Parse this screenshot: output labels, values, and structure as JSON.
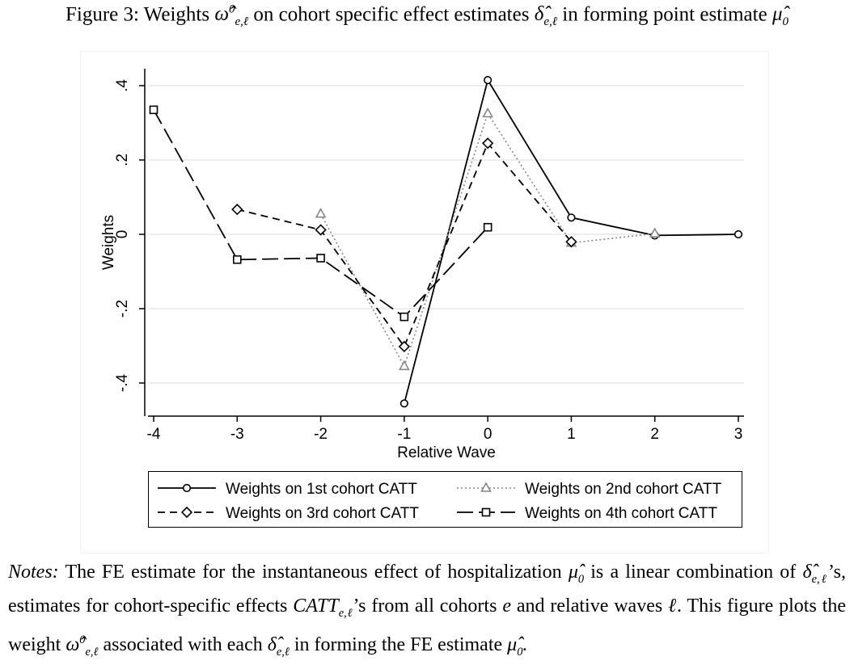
{
  "caption": {
    "prefix": "Figure 3: Weights",
    "mid": "on cohort specific effect estimates",
    "suffix": "in forming point estimate"
  },
  "notes": {
    "label": "Notes:",
    "part1": "The FE estimate for the instantaneous effect of hospitalization",
    "part2": "is a linear combination of",
    "part3": "’s, estimates for cohort-specific effects",
    "part4": "’s from all cohorts",
    "part5": "and relative waves",
    "part6": ". This figure plots the weight",
    "part7": "associated with each",
    "part8": "in forming the FE estimate"
  },
  "chart_data": {
    "type": "line",
    "xlabel": "Relative Wave",
    "ylabel": "Weights",
    "xlim": [
      -4.1,
      3.1
    ],
    "ylim": [
      -0.48,
      0.44
    ],
    "x_ticks": [
      -4,
      -3,
      -2,
      -1,
      0,
      1,
      2,
      3
    ],
    "x_tick_labels": [
      "-4",
      "-3",
      "-2",
      "-1",
      "0",
      "1",
      "2",
      "3"
    ],
    "y_ticks": [
      0.4,
      0.2,
      0,
      -0.2,
      -0.4
    ],
    "y_tick_labels": [
      ".4",
      ".2",
      "0",
      "-.2",
      "-.4"
    ],
    "grid": "horizontal",
    "legend_position": "bottom",
    "series": [
      {
        "name": "Weights on 1st cohort CATT",
        "style": "solid",
        "marker": "circle",
        "color": "#000000",
        "x": [
          -1,
          0,
          1,
          2,
          3
        ],
        "values": [
          -0.455,
          0.415,
          0.045,
          -0.003,
          0.0
        ]
      },
      {
        "name": "Weights on 2nd cohort CATT",
        "style": "dotted",
        "marker": "triangle",
        "color": "#888888",
        "x": [
          -2,
          -1,
          0,
          1,
          2
        ],
        "values": [
          0.055,
          -0.355,
          0.325,
          -0.023,
          0.002
        ]
      },
      {
        "name": "Weights on 3rd cohort CATT",
        "style": "dashed",
        "marker": "diamond",
        "color": "#000000",
        "x": [
          -3,
          -2,
          -1,
          0,
          1
        ],
        "values": [
          0.067,
          0.012,
          -0.302,
          0.245,
          -0.02
        ]
      },
      {
        "name": "Weights on 4th cohort CATT",
        "style": "longdash",
        "marker": "square",
        "color": "#000000",
        "x": [
          -4,
          -3,
          -2,
          -1,
          0
        ],
        "values": [
          0.335,
          -0.068,
          -0.064,
          -0.222,
          0.019
        ]
      }
    ]
  }
}
